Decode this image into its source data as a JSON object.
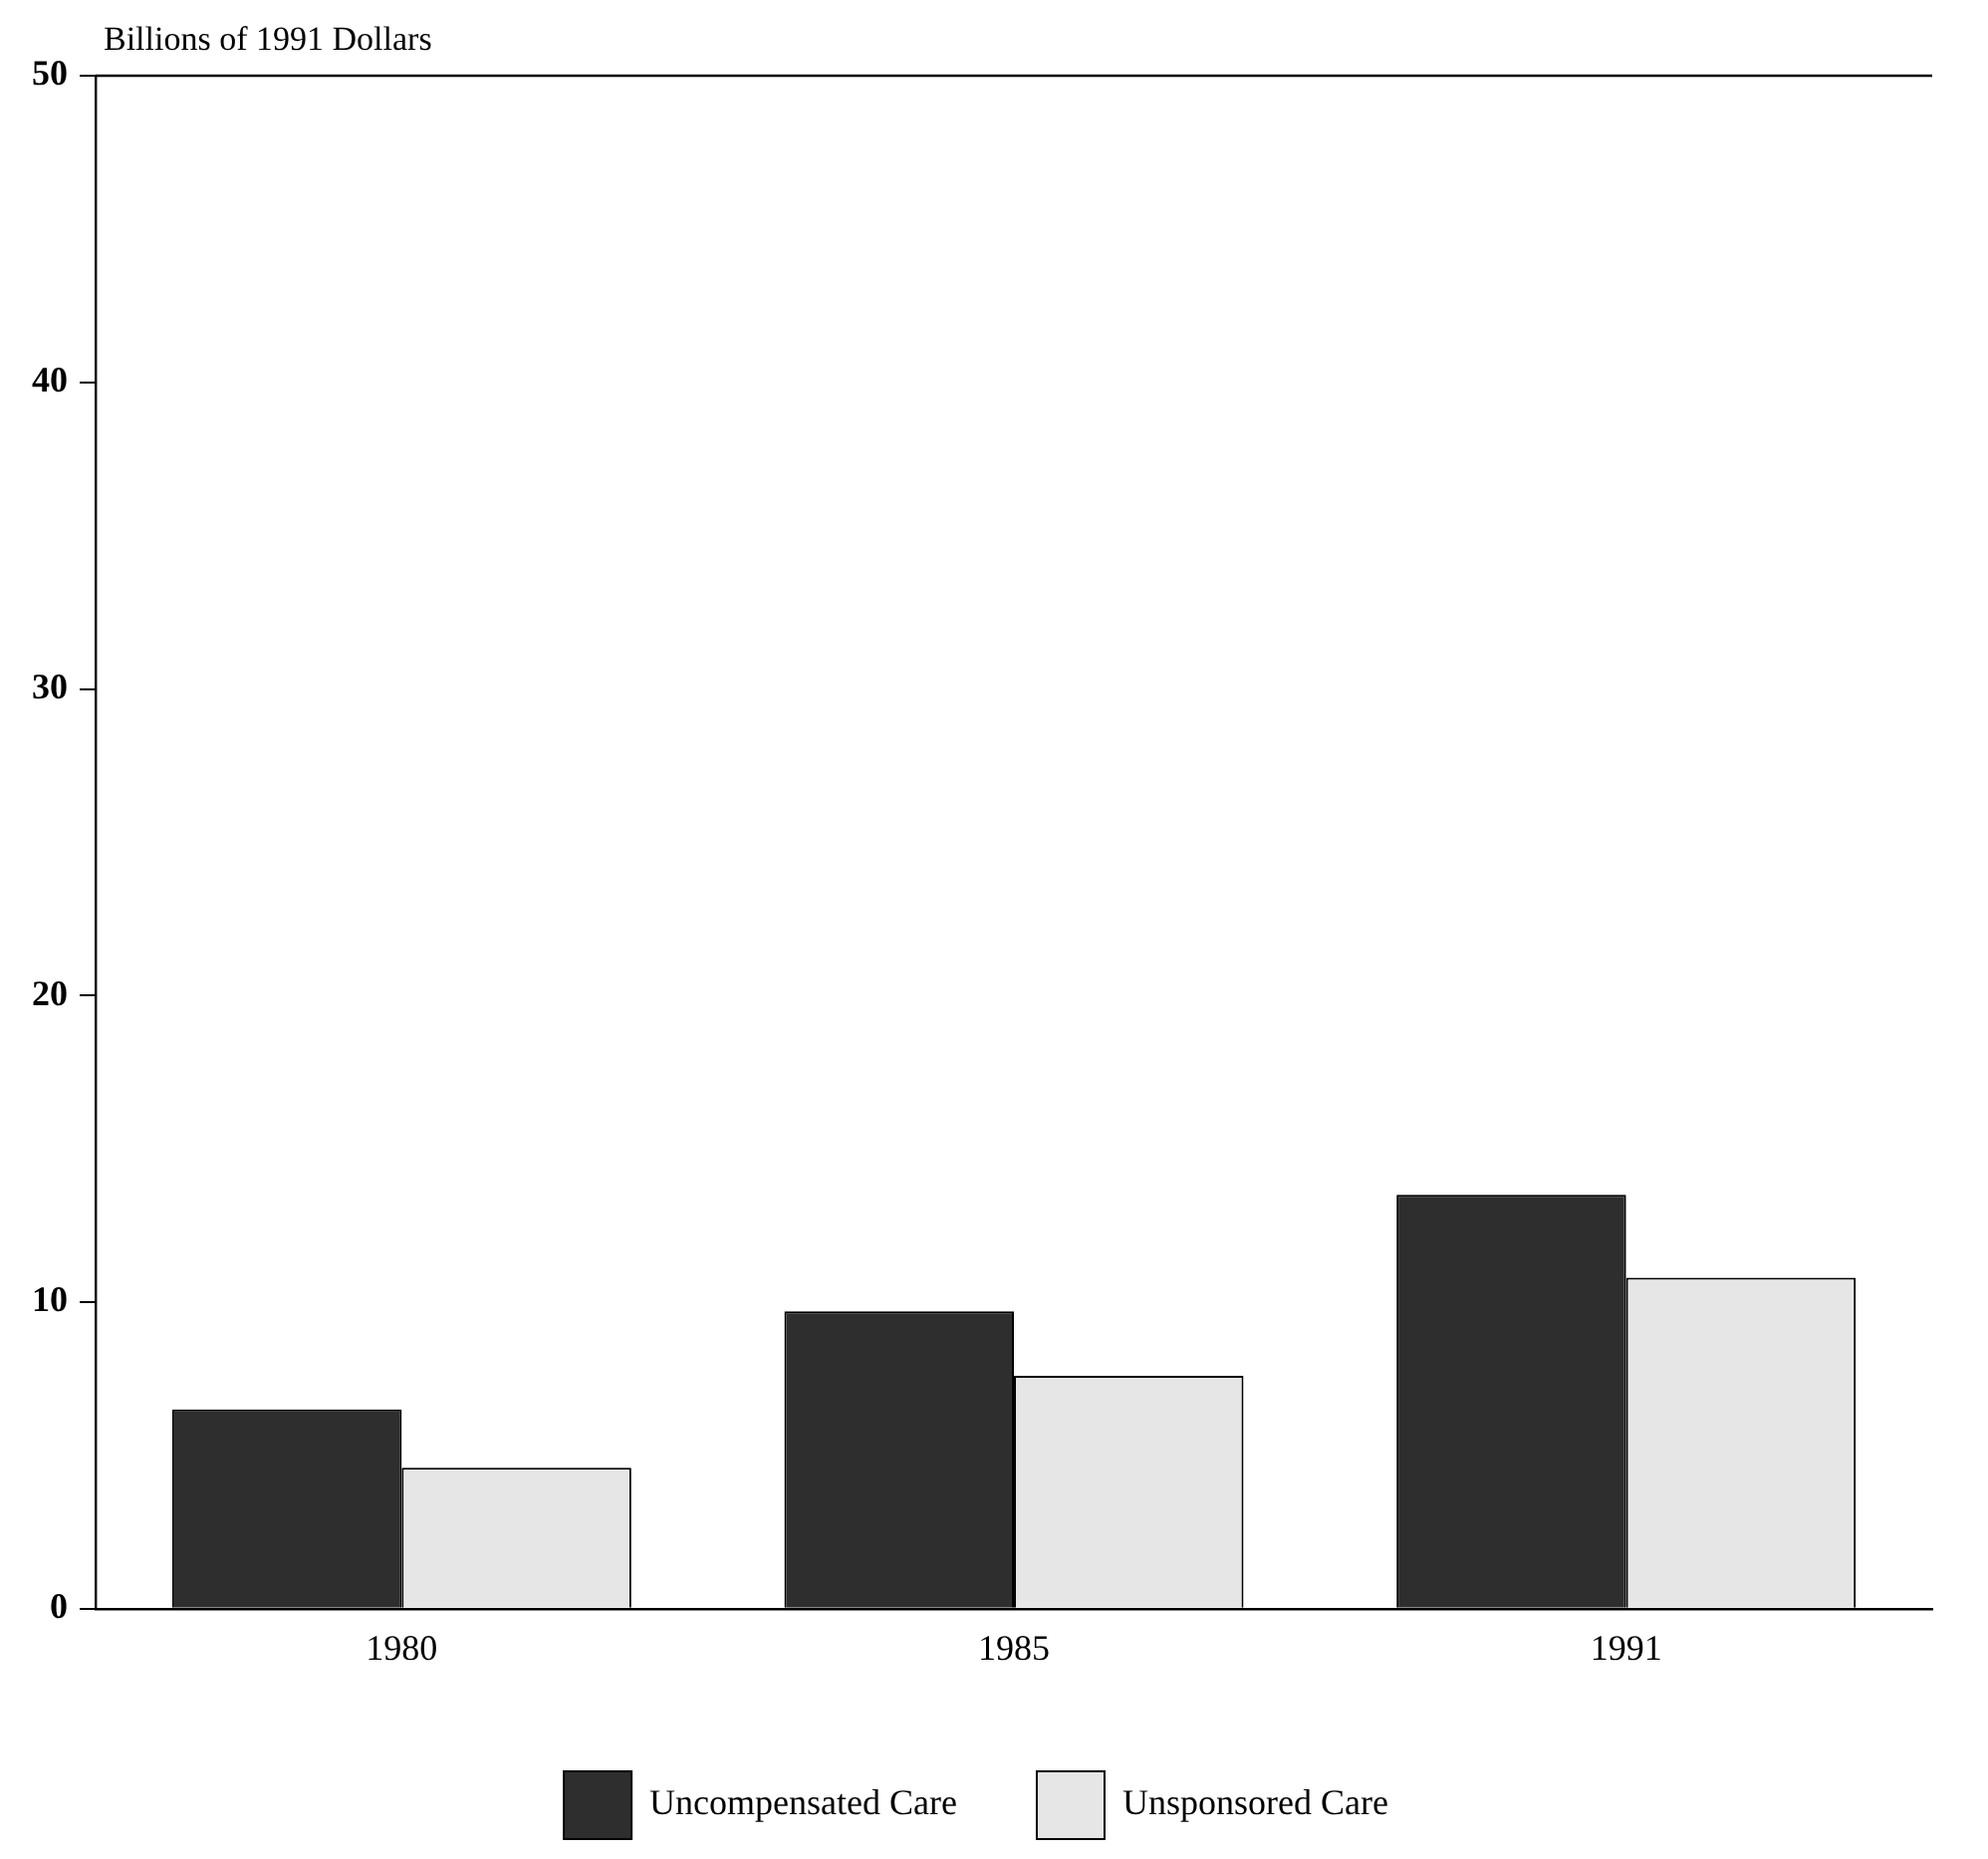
{
  "chart_data": {
    "type": "bar",
    "ylabel": "Billions of 1991 Dollars",
    "categories": [
      "1980",
      "1985",
      "1991"
    ],
    "series": [
      {
        "name": "Uncompensated Care",
        "color": "#2e2e2e",
        "values": [
          6.5,
          9.7,
          13.5
        ]
      },
      {
        "name": "Unsponsored Care",
        "color": "#e6e6e6",
        "values": [
          4.6,
          7.6,
          10.8
        ]
      }
    ],
    "ylim": [
      0,
      50
    ],
    "yticks": [
      0,
      10,
      20,
      30,
      40,
      50
    ],
    "grid": false,
    "legend": "bottom"
  }
}
